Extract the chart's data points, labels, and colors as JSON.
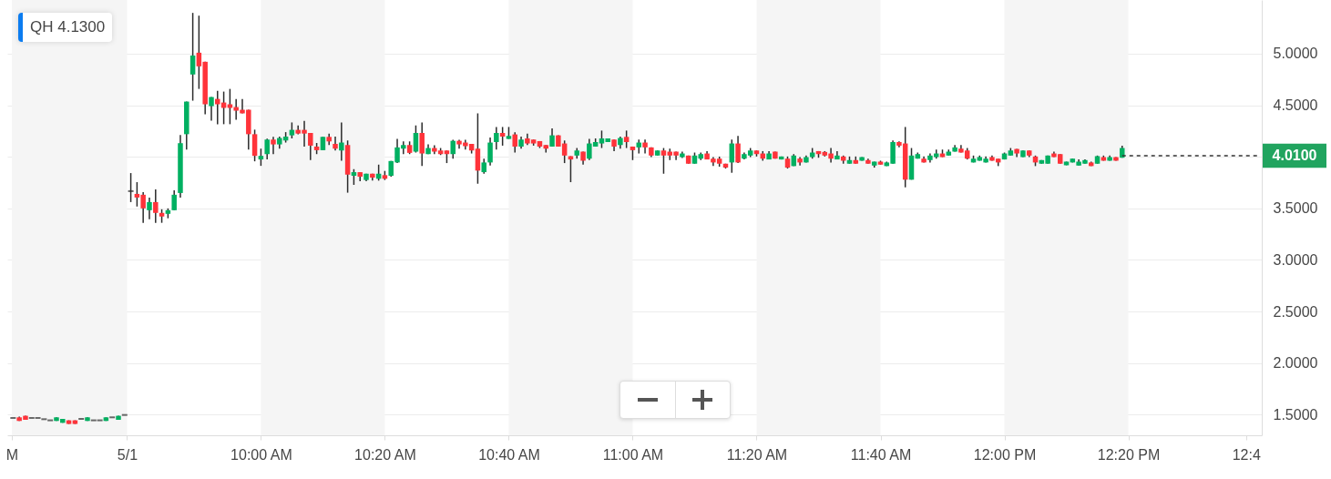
{
  "chart_data": {
    "type": "candlestick",
    "annotations": [
      "QH 4.1300"
    ],
    "x": [
      9.3333,
      9.35,
      9.3667,
      9.3833,
      9.4,
      9.4167,
      9.4333,
      9.45,
      9.4667,
      9.4833,
      9.5,
      9.5167,
      9.5333,
      9.55,
      9.5667,
      9.5833,
      9.6,
      9.6167,
      9.6333,
      9.65,
      9.6667,
      9.6833,
      9.7,
      9.7167,
      9.7333,
      9.75,
      9.7667,
      9.7833,
      9.8,
      9.8167,
      9.8333,
      9.85,
      9.8667,
      9.8833,
      9.9,
      9.9167,
      9.9333,
      9.95,
      9.9667,
      9.9833,
      10.0,
      10.0167,
      10.0333,
      10.05,
      10.0667,
      10.0833,
      10.1,
      10.1167,
      10.1333,
      10.15,
      10.1667,
      10.1833,
      10.2,
      10.2167,
      10.2333,
      10.25,
      10.2667,
      10.2833,
      10.3,
      10.3167,
      10.3333,
      10.35,
      10.3667,
      10.3833,
      10.4,
      10.4167,
      10.4333,
      10.45,
      10.4667,
      10.4833,
      10.5,
      10.5167,
      10.5333,
      10.55,
      10.5667,
      10.5833,
      10.6,
      10.6167,
      10.6333,
      10.65,
      10.6667,
      10.6833,
      10.7,
      10.7167,
      10.7333,
      10.75,
      10.7667,
      10.7833,
      10.8,
      10.8167,
      10.8333,
      10.85,
      10.8667,
      10.8833,
      10.9,
      10.9167,
      10.9333,
      10.95,
      10.9667,
      10.9833,
      11.0,
      11.0167,
      11.0333,
      11.05,
      11.0667,
      11.0833,
      11.1,
      11.1167,
      11.1333,
      11.15,
      11.1667,
      11.1833,
      11.2,
      11.2167,
      11.2333,
      11.25,
      11.2667,
      11.2833,
      11.3,
      11.3167,
      11.3333,
      11.35,
      11.3667,
      11.3833,
      11.4,
      11.4167,
      11.4333,
      11.45,
      11.4667,
      11.4833,
      11.5,
      11.5167,
      11.5333,
      11.55,
      11.5667,
      11.5833,
      11.6,
      11.6167,
      11.6333,
      11.65,
      11.6667,
      11.6833,
      11.7,
      11.7167,
      11.7333,
      11.75,
      11.7667,
      11.7833,
      11.8,
      11.8167,
      11.8333,
      11.85,
      11.8667,
      11.8833,
      11.9,
      11.9167,
      11.9333,
      11.95,
      11.9667,
      11.9833,
      12.0,
      12.0167,
      12.0333,
      12.05,
      12.0667,
      12.0833,
      12.1,
      12.1167,
      12.1333,
      12.15,
      12.1667,
      12.1833,
      12.2,
      12.2167,
      12.2333,
      12.25,
      12.2667,
      12.2833,
      12.3,
      12.3167
    ],
    "ohlc": [
      [
        1.468,
        1.468,
        1.468,
        1.468
      ],
      [
        1.474,
        1.48,
        1.439,
        1.439
      ],
      [
        1.489,
        1.489,
        1.45,
        1.45
      ],
      [
        1.468,
        1.468,
        1.468,
        1.468
      ],
      [
        1.468,
        1.468,
        1.468,
        1.468
      ],
      [
        1.456,
        1.456,
        1.456,
        1.456
      ],
      [
        1.445,
        1.445,
        1.445,
        1.445
      ],
      [
        1.439,
        1.474,
        1.439,
        1.474
      ],
      [
        1.421,
        1.459,
        1.421,
        1.459
      ],
      [
        1.445,
        1.445,
        1.41,
        1.41
      ],
      [
        1.445,
        1.445,
        1.41,
        1.41
      ],
      [
        1.459,
        1.459,
        1.459,
        1.459
      ],
      [
        1.439,
        1.474,
        1.439,
        1.474
      ],
      [
        1.445,
        1.445,
        1.445,
        1.445
      ],
      [
        1.445,
        1.445,
        1.445,
        1.445
      ],
      [
        1.439,
        1.474,
        1.439,
        1.474
      ],
      [
        1.474,
        1.474,
        1.474,
        1.474
      ],
      [
        1.45,
        1.489,
        1.45,
        1.489
      ],
      [
        1.497,
        1.497,
        1.497,
        1.497
      ],
      [
        3.667,
        3.842,
        3.561,
        3.667
      ],
      [
        3.64,
        3.754,
        3.518,
        3.605
      ],
      [
        3.632,
        3.658,
        3.36,
        3.5
      ],
      [
        3.482,
        3.605,
        3.395,
        3.561
      ],
      [
        3.561,
        3.684,
        3.36,
        3.456
      ],
      [
        3.456,
        3.491,
        3.36,
        3.421
      ],
      [
        3.447,
        3.5,
        3.404,
        3.482
      ],
      [
        3.482,
        3.675,
        3.482,
        3.632
      ],
      [
        3.649,
        4.211,
        3.605,
        4.132
      ],
      [
        4.219,
        4.535,
        4.07,
        4.535
      ],
      [
        4.798,
        5.395,
        4.544,
        4.982
      ],
      [
        5.009,
        5.368,
        4.658,
        4.877
      ],
      [
        4.921,
        4.921,
        4.412,
        4.509
      ],
      [
        4.491,
        4.579,
        4.351,
        4.579
      ],
      [
        4.561,
        4.64,
        4.316,
        4.509
      ],
      [
        4.526,
        4.632,
        4.316,
        4.474
      ],
      [
        4.509,
        4.658,
        4.316,
        4.474
      ],
      [
        4.482,
        4.561,
        4.36,
        4.447
      ],
      [
        4.456,
        4.561,
        4.421,
        4.421
      ],
      [
        4.456,
        4.456,
        4.07,
        4.219
      ],
      [
        4.219,
        4.263,
        3.956,
        4.009
      ],
      [
        3.974,
        4.079,
        3.912,
        4.009
      ],
      [
        4.026,
        4.175,
        3.974,
        4.167
      ],
      [
        4.167,
        4.193,
        4.026,
        4.12
      ],
      [
        4.12,
        4.196,
        4.079,
        4.182
      ],
      [
        4.158,
        4.239,
        4.138,
        4.196
      ],
      [
        4.208,
        4.333,
        4.178,
        4.261
      ],
      [
        4.261,
        4.304,
        4.217,
        4.225
      ],
      [
        4.261,
        4.348,
        4.099,
        4.225
      ],
      [
        4.231,
        4.231,
        3.968,
        4.108
      ],
      [
        4.099,
        4.134,
        4.026,
        4.064
      ],
      [
        4.064,
        4.193,
        4.064,
        4.193
      ],
      [
        4.193,
        4.225,
        4.114,
        4.149
      ],
      [
        4.125,
        4.196,
        4.061,
        4.079
      ],
      [
        4.061,
        4.333,
        3.962,
        4.138
      ],
      [
        4.114,
        4.158,
        3.652,
        3.827
      ],
      [
        3.816,
        3.88,
        3.728,
        3.851
      ],
      [
        3.851,
        3.851,
        3.763,
        3.807
      ],
      [
        3.775,
        3.836,
        3.763,
        3.836
      ],
      [
        3.836,
        3.836,
        3.769,
        3.798
      ],
      [
        3.787,
        3.924,
        3.769,
        3.836
      ],
      [
        3.822,
        3.863,
        3.775,
        3.787
      ],
      [
        3.816,
        3.959,
        3.807,
        3.959
      ],
      [
        3.945,
        4.173,
        3.939,
        4.091
      ],
      [
        4.079,
        4.149,
        4.026,
        4.114
      ],
      [
        4.114,
        4.149,
        4.026,
        4.038
      ],
      [
        4.05,
        4.304,
        4.041,
        4.231
      ],
      [
        4.231,
        4.333,
        3.91,
        4.032
      ],
      [
        4.026,
        4.12,
        4.026,
        4.085
      ],
      [
        4.085,
        4.111,
        4.026,
        4.05
      ],
      [
        4.061,
        4.085,
        4.017,
        4.026
      ],
      [
        4.061,
        4.061,
        3.939,
        4.026
      ],
      [
        4.026,
        4.164,
        3.982,
        4.155
      ],
      [
        4.155,
        4.164,
        4.079,
        4.12
      ],
      [
        4.138,
        4.164,
        4.07,
        4.103
      ],
      [
        4.125,
        4.125,
        4.032,
        4.061
      ],
      [
        4.079,
        4.421,
        3.739,
        3.866
      ],
      [
        3.851,
        3.982,
        3.836,
        3.945
      ],
      [
        3.945,
        4.187,
        3.915,
        4.138
      ],
      [
        4.143,
        4.289,
        4.07,
        4.231
      ],
      [
        4.231,
        4.289,
        4.108,
        4.196
      ],
      [
        4.173,
        4.289,
        4.173,
        4.202
      ],
      [
        4.217,
        4.237,
        4.041,
        4.099
      ],
      [
        4.099,
        4.196,
        4.079,
        4.167
      ],
      [
        4.178,
        4.225,
        4.114,
        4.129
      ],
      [
        4.167,
        4.167,
        4.108,
        4.129
      ],
      [
        4.152,
        4.152,
        4.085,
        4.099
      ],
      [
        4.114,
        4.114,
        4.041,
        4.079
      ],
      [
        4.099,
        4.275,
        4.099,
        4.208
      ],
      [
        4.208,
        4.208,
        4.099,
        4.099
      ],
      [
        4.129,
        4.158,
        3.939,
        4.012
      ],
      [
        4.006,
        4.006,
        3.754,
        3.974
      ],
      [
        4.012,
        4.085,
        3.982,
        4.061
      ],
      [
        4.05,
        4.05,
        3.924,
        3.962
      ],
      [
        3.982,
        4.173,
        3.968,
        4.129
      ],
      [
        4.099,
        4.178,
        4.099,
        4.143
      ],
      [
        4.129,
        4.254,
        4.085,
        4.178
      ],
      [
        4.143,
        4.178,
        4.143,
        4.178
      ],
      [
        4.167,
        4.167,
        4.055,
        4.099
      ],
      [
        4.114,
        4.196,
        4.079,
        4.182
      ],
      [
        4.193,
        4.254,
        4.085,
        4.143
      ],
      [
        4.099,
        4.099,
        3.968,
        4.064
      ],
      [
        4.091,
        4.167,
        4.032,
        4.138
      ],
      [
        4.138,
        4.167,
        4.032,
        4.091
      ],
      [
        4.091,
        4.091,
        3.997,
        4.012
      ],
      [
        4.012,
        4.061,
        4.012,
        4.061
      ],
      [
        4.061,
        4.085,
        3.836,
        4.012
      ],
      [
        4.05,
        4.079,
        3.968,
        4.012
      ],
      [
        4.05,
        4.05,
        3.968,
        4.012
      ],
      [
        3.997,
        4.05,
        3.989,
        4.032
      ],
      [
        4.012,
        4.012,
        3.933,
        3.933
      ],
      [
        3.933,
        4.041,
        3.933,
        4.012
      ],
      [
        3.982,
        4.041,
        3.968,
        4.026
      ],
      [
        4.032,
        4.055,
        3.974,
        3.974
      ],
      [
        3.982,
        3.997,
        3.91,
        3.945
      ],
      [
        3.982,
        4.002,
        3.904,
        3.933
      ],
      [
        3.933,
        3.933,
        3.886,
        3.895
      ],
      [
        3.945,
        4.167,
        3.845,
        4.129
      ],
      [
        4.129,
        4.202,
        3.939,
        3.945
      ],
      [
        3.982,
        4.041,
        3.974,
        4.026
      ],
      [
        4.012,
        4.085,
        3.997,
        4.061
      ],
      [
        4.061,
        4.061,
        4.003,
        4.026
      ],
      [
        4.032,
        4.055,
        3.962,
        3.982
      ],
      [
        3.974,
        4.055,
        3.974,
        4.032
      ],
      [
        4.05,
        4.05,
        3.982,
        3.982
      ],
      [
        3.974,
        4.003,
        3.974,
        4.003
      ],
      [
        3.982,
        4.003,
        3.886,
        3.895
      ],
      [
        3.91,
        4.026,
        3.91,
        4.012
      ],
      [
        3.982,
        3.997,
        3.915,
        3.945
      ],
      [
        3.945,
        4.012,
        3.945,
        3.997
      ],
      [
        3.997,
        4.085,
        3.982,
        4.041
      ],
      [
        4.055,
        4.055,
        3.991,
        4.026
      ],
      [
        4.047,
        4.055,
        4.003,
        4.012
      ],
      [
        4.032,
        4.085,
        3.945,
        3.982
      ],
      [
        3.974,
        4.055,
        3.974,
        4.012
      ],
      [
        4.003,
        4.012,
        3.933,
        3.962
      ],
      [
        3.933,
        4.003,
        3.933,
        3.968
      ],
      [
        3.968,
        4.003,
        3.933,
        3.933
      ],
      [
        3.962,
        3.997,
        3.962,
        3.997
      ],
      [
        3.968,
        3.982,
        3.933,
        3.933
      ],
      [
        3.915,
        3.953,
        3.895,
        3.953
      ],
      [
        3.953,
        3.962,
        3.924,
        3.924
      ],
      [
        3.91,
        3.953,
        3.91,
        3.945
      ],
      [
        3.933,
        4.158,
        3.933,
        4.143
      ],
      [
        4.143,
        4.149,
        4.091,
        4.108
      ],
      [
        4.129,
        4.289,
        3.704,
        3.778
      ],
      [
        3.778,
        4.085,
        3.778,
        4.012
      ],
      [
        3.982,
        4.041,
        3.982,
        4.026
      ],
      [
        3.982,
        4.003,
        3.945,
        3.945
      ],
      [
        3.968,
        4.032,
        3.945,
        4.012
      ],
      [
        3.997,
        4.07,
        3.982,
        4.032
      ],
      [
        4.032,
        4.07,
        3.997,
        3.997
      ],
      [
        4.012,
        4.07,
        4.012,
        4.05
      ],
      [
        4.05,
        4.114,
        4.05,
        4.091
      ],
      [
        4.079,
        4.114,
        4.041,
        4.041
      ],
      [
        4.061,
        4.085,
        3.974,
        3.982
      ],
      [
        3.945,
        4.012,
        3.945,
        3.982
      ],
      [
        3.962,
        4.012,
        3.962,
        3.997
      ],
      [
        3.945,
        4.003,
        3.945,
        3.982
      ],
      [
        3.997,
        4.012,
        3.962,
        3.962
      ],
      [
        3.982,
        3.982,
        3.91,
        3.945
      ],
      [
        3.974,
        4.041,
        3.974,
        4.032
      ],
      [
        4.012,
        4.085,
        4.012,
        4.061
      ],
      [
        4.076,
        4.076,
        3.997,
        4.032
      ],
      [
        3.997,
        4.061,
        3.997,
        4.061
      ],
      [
        4.061,
        4.061,
        3.997,
        4.012
      ],
      [
        4.003,
        4.012,
        3.91,
        3.945
      ],
      [
        3.933,
        3.968,
        3.933,
        3.968
      ],
      [
        3.933,
        4.012,
        3.933,
        4.012
      ],
      [
        4.032,
        4.05,
        3.997,
        3.997
      ],
      [
        4.026,
        4.026,
        3.933,
        3.933
      ],
      [
        3.918,
        3.953,
        3.918,
        3.953
      ],
      [
        3.945,
        3.982,
        3.945,
        3.982
      ],
      [
        3.915,
        3.974,
        3.915,
        3.953
      ],
      [
        3.933,
        3.974,
        3.933,
        3.968
      ],
      [
        3.945,
        3.953,
        3.91,
        3.91
      ],
      [
        3.933,
        4.012,
        3.933,
        4.006
      ],
      [
        3.997,
        4.012,
        3.962,
        3.962
      ],
      [
        3.962,
        4.012,
        3.962,
        3.997
      ],
      [
        3.997,
        3.997,
        3.962,
        3.962
      ],
      [
        3.991,
        4.108,
        3.991,
        4.085
      ]
    ],
    "xlim": [
      9.33,
      12.68
    ],
    "xticks": [
      {
        "value": 9.33,
        "label": "M"
      },
      {
        "value": 9.64,
        "label": "5/1"
      },
      {
        "value": 10,
        "label": "10:00 AM"
      },
      {
        "value": 10.3333,
        "label": "10:20 AM"
      },
      {
        "value": 10.6667,
        "label": "10:40 AM"
      },
      {
        "value": 11,
        "label": "11:00 AM"
      },
      {
        "value": 11.3333,
        "label": "11:20 AM"
      },
      {
        "value": 11.6667,
        "label": "11:40 AM"
      },
      {
        "value": 12,
        "label": "12:00 PM"
      },
      {
        "value": 12.3333,
        "label": "12:20 PM"
      },
      {
        "value": 12.65,
        "label": "12:4"
      }
    ],
    "ylim": [
      1.3,
      5.52
    ],
    "yticks": [
      {
        "value": 1.5,
        "label": "1.5000"
      },
      {
        "value": 2,
        "label": "2.0000"
      },
      {
        "value": 2.5,
        "label": "2.5000"
      },
      {
        "value": 3,
        "label": "3.0000"
      },
      {
        "value": 3.5,
        "label": "3.5000"
      },
      {
        "value": 4,
        "label": null
      },
      {
        "value": 4.5,
        "label": "4.5000"
      },
      {
        "value": 5,
        "label": "5.0000"
      }
    ],
    "grid": "y",
    "ref_lines": [
      {
        "axis": "y",
        "value": 4.01,
        "label": "4.0100",
        "color": "#333333",
        "line_style": "dashed"
      }
    ],
    "bands": [
      {
        "axis": "x",
        "from": 9.33,
        "to": 9.64,
        "color": "#f5f5f5"
      },
      {
        "axis": "x",
        "from": 10,
        "to": 10.3333,
        "color": "#f5f5f5"
      },
      {
        "axis": "x",
        "from": 10.6667,
        "to": 11,
        "color": "#f5f5f5"
      },
      {
        "axis": "x",
        "from": 11.3333,
        "to": 11.6667,
        "color": "#f5f5f5"
      },
      {
        "axis": "x",
        "from": 12,
        "to": 12.3333,
        "color": "#f5f5f5"
      }
    ]
  }
}
